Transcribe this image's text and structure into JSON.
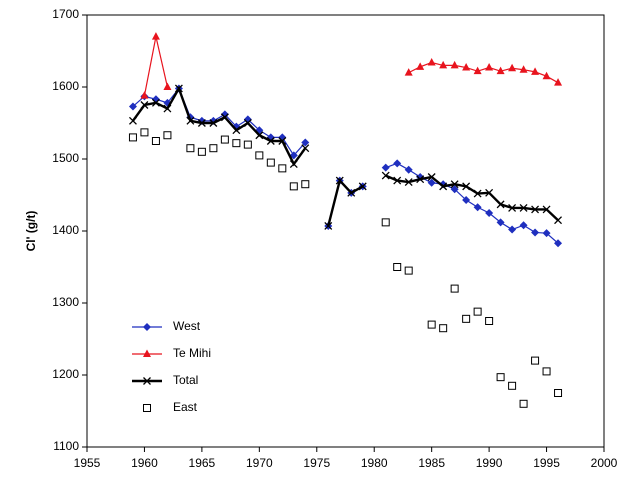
{
  "chart_data": {
    "type": "line",
    "ylabel": "Cl' (g/t)",
    "x": [
      1959,
      1960,
      1961,
      1962,
      1963,
      1964,
      1965,
      1966,
      1967,
      1968,
      1969,
      1970,
      1971,
      1972,
      1973,
      1974,
      1975,
      1976,
      1977,
      1978,
      1979,
      1980,
      1981,
      1982,
      1983,
      1984,
      1985,
      1986,
      1987,
      1988,
      1989,
      1990,
      1991,
      1992,
      1993,
      1994,
      1995,
      1996
    ],
    "series": [
      {
        "name": "West",
        "color": "#1f2fbf",
        "marker": "diamond",
        "line": true,
        "width": 1.2,
        "values": [
          1573,
          1587,
          1583,
          1578,
          1598,
          1558,
          1553,
          1553,
          1562,
          1545,
          1555,
          1540,
          1530,
          1530,
          1505,
          1523,
          null,
          1407,
          1470,
          1453,
          1462,
          null,
          1488,
          1494,
          1485,
          1475,
          1467,
          1465,
          1458,
          1443,
          1433,
          1425,
          1412,
          1402,
          1408,
          1398,
          1397,
          1383
        ]
      },
      {
        "name": "Te Mihi",
        "color": "#e8141e",
        "marker": "triangle",
        "line": true,
        "width": 1.2,
        "values": [
          null,
          1588,
          1670,
          1600,
          null,
          null,
          null,
          null,
          null,
          null,
          null,
          null,
          null,
          null,
          null,
          null,
          null,
          null,
          null,
          null,
          null,
          null,
          null,
          null,
          1620,
          1628,
          1634,
          1630,
          1630,
          1627,
          1622,
          1627,
          1622,
          1626,
          1624,
          1621,
          1615,
          1606
        ]
      },
      {
        "name": "Total",
        "color": "#000000",
        "marker": "x",
        "line": true,
        "width": 2.4,
        "values": [
          1553,
          1575,
          1578,
          1570,
          1598,
          1553,
          1550,
          1550,
          1558,
          1540,
          1550,
          1533,
          1525,
          1525,
          1493,
          1515,
          null,
          1407,
          1470,
          1453,
          1462,
          null,
          1477,
          1470,
          1468,
          1472,
          1475,
          1462,
          1465,
          1462,
          1452,
          1453,
          1437,
          1432,
          1432,
          1430,
          1430,
          1415
        ]
      },
      {
        "name": "East",
        "color": "#000000",
        "marker": "square",
        "line": false,
        "width": 1,
        "values": [
          1530,
          1537,
          1525,
          1533,
          null,
          1515,
          1510,
          1515,
          1527,
          1522,
          1520,
          1505,
          1495,
          1487,
          1462,
          1465,
          null,
          null,
          null,
          null,
          null,
          null,
          1412,
          1350,
          1345,
          null,
          1270,
          1265,
          1320,
          1278,
          1288,
          1275,
          1197,
          1185,
          1160,
          1220,
          1205,
          1175
        ]
      }
    ],
    "xlim": [
      1955,
      2000
    ],
    "xticks": [
      1955,
      1960,
      1965,
      1970,
      1975,
      1980,
      1985,
      1990,
      1995,
      2000
    ],
    "ylim": [
      1100,
      1700
    ],
    "yticks": [
      1100,
      1200,
      1300,
      1400,
      1500,
      1600,
      1700
    ],
    "grid": false,
    "legend": "lower left"
  }
}
